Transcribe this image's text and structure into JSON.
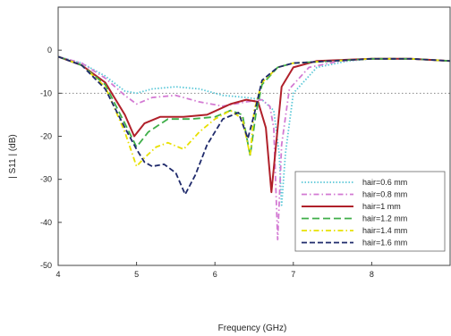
{
  "chart_data": {
    "type": "line",
    "title": "",
    "xlabel": "Frequency (GHz)",
    "ylabel": "| S11 | (dB)",
    "xlim": [
      4,
      9
    ],
    "ylim": [
      -50,
      10
    ],
    "xticks": [
      4,
      5,
      6,
      7,
      8
    ],
    "yticks": [
      0,
      -10,
      -20,
      -30,
      -40,
      -50
    ],
    "reference_line_y": -10,
    "grid": false,
    "legend_position": "bottom-right",
    "series": [
      {
        "name": "hair=0.6 mm",
        "color": "#5bc8d8",
        "dash": "dotted",
        "x": [
          4.0,
          4.3,
          4.6,
          4.85,
          5.0,
          5.2,
          5.5,
          5.8,
          6.1,
          6.4,
          6.6,
          6.75,
          6.82,
          6.85,
          6.9,
          7.0,
          7.3,
          7.7,
          8.0,
          8.5,
          9.0
        ],
        "y": [
          -1.5,
          -3,
          -6,
          -9.5,
          -10,
          -9,
          -8.5,
          -9,
          -10.5,
          -11,
          -11.5,
          -14,
          -24,
          -36,
          -24,
          -10,
          -4,
          -2.5,
          -2,
          -2,
          -2.5
        ]
      },
      {
        "name": "hair=0.8 mm",
        "color": "#d37ad3",
        "dash": "dashdot",
        "x": [
          4.0,
          4.3,
          4.6,
          4.85,
          5.0,
          5.2,
          5.5,
          5.8,
          6.1,
          6.4,
          6.6,
          6.7,
          6.75,
          6.8,
          6.85,
          6.95,
          7.2,
          7.6,
          8.0,
          8.5,
          9.0
        ],
        "y": [
          -1.5,
          -3,
          -6.5,
          -10.5,
          -12.5,
          -11,
          -10.5,
          -12,
          -13,
          -12,
          -11.5,
          -13,
          -18,
          -44,
          -22,
          -9,
          -4,
          -2.5,
          -2,
          -2,
          -2.5
        ]
      },
      {
        "name": "hair=1 mm",
        "color": "#b0202a",
        "dash": "solid",
        "x": [
          4.0,
          4.3,
          4.6,
          4.85,
          4.97,
          5.1,
          5.3,
          5.6,
          5.9,
          6.2,
          6.4,
          6.55,
          6.65,
          6.72,
          6.78,
          6.85,
          7.0,
          7.3,
          8.0,
          8.5,
          9.0
        ],
        "y": [
          -1.5,
          -3.5,
          -7.5,
          -15,
          -20,
          -17,
          -15.5,
          -15.5,
          -15,
          -12.5,
          -11.5,
          -12,
          -18,
          -33,
          -22,
          -8.5,
          -4,
          -2.5,
          -2,
          -2,
          -2.5
        ]
      },
      {
        "name": "hair=1.2 mm",
        "color": "#3fae49",
        "dash": "longdash",
        "x": [
          4.0,
          4.3,
          4.6,
          4.85,
          5.0,
          5.15,
          5.4,
          5.7,
          6.0,
          6.2,
          6.35,
          6.45,
          6.52,
          6.6,
          6.8,
          7.0,
          7.5,
          8.0,
          8.5,
          9.0
        ],
        "y": [
          -1.5,
          -3.5,
          -8,
          -17,
          -22.5,
          -19,
          -16,
          -16,
          -15.5,
          -14,
          -15,
          -24.5,
          -15,
          -8,
          -4,
          -3,
          -2.5,
          -2,
          -2,
          -2.5
        ]
      },
      {
        "name": "hair=1.4 mm",
        "color": "#e8e000",
        "dash": "dashdot",
        "x": [
          4.0,
          4.3,
          4.6,
          4.85,
          5.0,
          5.1,
          5.25,
          5.4,
          5.6,
          5.8,
          6.0,
          6.2,
          6.35,
          6.45,
          6.5,
          6.6,
          6.8,
          7.0,
          7.5,
          8.0,
          8.5,
          9.0
        ],
        "y": [
          -1.5,
          -3.5,
          -8.5,
          -19,
          -27,
          -25,
          -22.5,
          -21.5,
          -23,
          -19,
          -16,
          -14,
          -16,
          -24.5,
          -14,
          -7.5,
          -4,
          -3,
          -2.5,
          -2,
          -2,
          -2.5
        ]
      },
      {
        "name": "hair=1.6 mm",
        "color": "#1f2a6b",
        "dash": "dashed",
        "x": [
          4.0,
          4.3,
          4.6,
          4.85,
          5.0,
          5.1,
          5.2,
          5.35,
          5.5,
          5.62,
          5.75,
          5.9,
          6.1,
          6.3,
          6.42,
          6.5,
          6.6,
          6.8,
          7.0,
          7.5,
          8.0,
          8.5,
          9.0
        ],
        "y": [
          -1.5,
          -3.5,
          -9,
          -18,
          -23,
          -26,
          -27,
          -26.5,
          -28.5,
          -33.5,
          -29,
          -22,
          -16,
          -14.5,
          -20.5,
          -15,
          -7,
          -4,
          -3,
          -2.5,
          -2,
          -2,
          -2.5
        ]
      }
    ]
  }
}
